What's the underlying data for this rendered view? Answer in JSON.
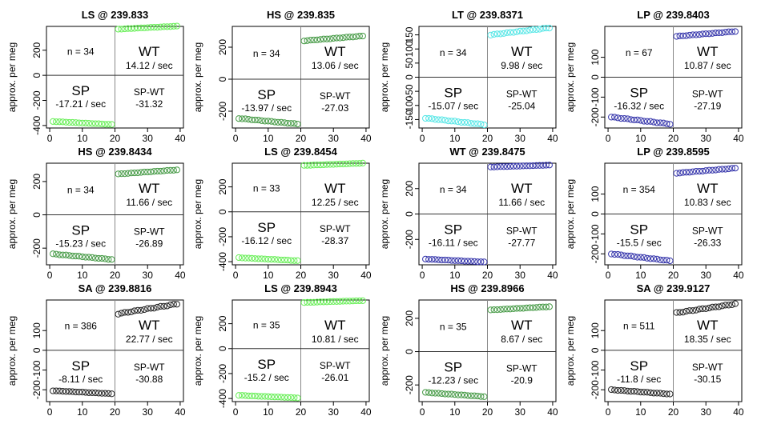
{
  "chart_data": [
    {
      "type": "scatter",
      "title": "LS @ 239.833",
      "ylabel": "approx. per meg",
      "color": "#66ee55",
      "ylim": [
        -420,
        390
      ],
      "yticks": [
        -400,
        -200,
        0,
        200
      ],
      "xlim": [
        -1,
        41
      ],
      "xticks": [
        0,
        10,
        20,
        30,
        40
      ],
      "xticklabels": [
        "0",
        "10",
        "20",
        "30",
        "40"
      ],
      "n": "n = 34",
      "wt_label": "WT",
      "wt_rate": "14.12 / sec",
      "sp_label": "SP",
      "sp_rate": "-17.21 / sec",
      "spwt_label": "SP-WT",
      "spwt_value": "-31.32",
      "sp_y_start": -368,
      "sp_y_end": -392,
      "wt_y_start": 368,
      "wt_y_end": 392
    },
    {
      "type": "scatter",
      "title": "HS @ 239.835",
      "ylabel": "approx. per meg",
      "color": "#449944",
      "ylim": [
        -305,
        330
      ],
      "yticks": [
        -200,
        0,
        200
      ],
      "xlim": [
        -1,
        41
      ],
      "xticks": [
        0,
        10,
        20,
        30,
        40
      ],
      "xticklabels": [
        "0",
        "10",
        "20",
        "30",
        "40"
      ],
      "n": "n = 34",
      "wt_label": "WT",
      "wt_rate": "13.06 / sec",
      "sp_label": "SP",
      "sp_rate": "-13.97 / sec",
      "spwt_label": "SP-WT",
      "spwt_value": "-27.03",
      "sp_y_start": -245,
      "sp_y_end": -280,
      "wt_y_start": 240,
      "wt_y_end": 270
    },
    {
      "type": "scatter",
      "title": "LT @ 239.8371",
      "ylabel": "approx. per meg",
      "color": "#55e6e6",
      "ylim": [
        -180,
        180
      ],
      "yticks": [
        -150,
        -100,
        -50,
        0,
        50,
        100,
        150
      ],
      "xlim": [
        -1,
        41
      ],
      "xticks": [
        0,
        10,
        20,
        30,
        40
      ],
      "xticklabels": [
        "0",
        "10",
        "20",
        "30",
        "40"
      ],
      "n": "n = 34",
      "wt_label": "WT",
      "wt_rate": "9.98 / sec",
      "sp_label": "SP",
      "sp_rate": "-15.07 / sec",
      "spwt_label": "SP-WT",
      "spwt_value": "-25.04",
      "sp_y_start": -145,
      "sp_y_end": -168,
      "wt_y_start": 150,
      "wt_y_end": 175
    },
    {
      "type": "scatter",
      "title": "LP @ 239.8403",
      "ylabel": "approx. per meg",
      "color": "#3333aa",
      "ylim": [
        -255,
        255
      ],
      "yticks": [
        -200,
        -100,
        0,
        100
      ],
      "xlim": [
        -1,
        41
      ],
      "xticks": [
        0,
        10,
        20,
        30,
        40
      ],
      "xticklabels": [
        "0",
        "10",
        "20",
        "30",
        "40"
      ],
      "n": "n = 67",
      "wt_label": "WT",
      "wt_rate": "10.87 / sec",
      "sp_label": "SP",
      "sp_rate": "-16.32 / sec",
      "spwt_label": "SP-WT",
      "spwt_value": "-27.19",
      "sp_y_start": -200,
      "sp_y_end": -235,
      "wt_y_start": 205,
      "wt_y_end": 230
    },
    {
      "type": "scatter",
      "title": "HS @ 239.8434",
      "ylabel": "approx. per meg",
      "color": "#449944",
      "ylim": [
        -300,
        310
      ],
      "yticks": [
        -200,
        0,
        200
      ],
      "xlim": [
        -1,
        41
      ],
      "xticks": [
        0,
        10,
        20,
        30,
        40
      ],
      "xticklabels": [
        "0",
        "10",
        "20",
        "30",
        "40"
      ],
      "n": "n = 34",
      "wt_label": "WT",
      "wt_rate": "11.66 / sec",
      "sp_label": "SP",
      "sp_rate": "-15.23 / sec",
      "spwt_label": "SP-WT",
      "spwt_value": "-26.89",
      "sp_y_start": -235,
      "sp_y_end": -268,
      "wt_y_start": 245,
      "wt_y_end": 270
    },
    {
      "type": "scatter",
      "title": "LS @ 239.8454",
      "ylabel": "approx. per meg",
      "color": "#66ee55",
      "ylim": [
        -425,
        390
      ],
      "yticks": [
        -400,
        -200,
        0,
        200
      ],
      "xlim": [
        -1,
        41
      ],
      "xticks": [
        0,
        10,
        20,
        30,
        40
      ],
      "xticklabels": [
        "0",
        "10",
        "20",
        "30",
        "40"
      ],
      "n": "n = 33",
      "wt_label": "WT",
      "wt_rate": "12.25 / sec",
      "sp_label": "SP",
      "sp_rate": "-16.12 / sec",
      "spwt_label": "SP-WT",
      "spwt_value": "-28.37",
      "sp_y_start": -368,
      "sp_y_end": -392,
      "wt_y_start": 372,
      "wt_y_end": 390
    },
    {
      "type": "scatter",
      "title": "WT @ 239.8475",
      "ylabel": "approx. per meg",
      "color": "#3333aa",
      "ylim": [
        -400,
        400
      ],
      "yticks": [
        -200,
        0,
        200
      ],
      "xlim": [
        -1,
        41
      ],
      "xticks": [
        0,
        10,
        20,
        30,
        40
      ],
      "xticklabels": [
        "0",
        "10",
        "20",
        "30",
        "40"
      ],
      "n": "n = 34",
      "wt_label": "WT",
      "wt_rate": "11.66 / sec",
      "sp_label": "SP",
      "sp_rate": "-16.11 / sec",
      "spwt_label": "SP-WT",
      "spwt_value": "-27.77",
      "sp_y_start": -355,
      "sp_y_end": -378,
      "wt_y_start": 370,
      "wt_y_end": 385
    },
    {
      "type": "scatter",
      "title": "LP @ 239.8595",
      "ylabel": "approx. per meg",
      "color": "#3333aa",
      "ylim": [
        -255,
        255
      ],
      "yticks": [
        -200,
        -100,
        0,
        100
      ],
      "xlim": [
        -1,
        41
      ],
      "xticks": [
        0,
        10,
        20,
        30,
        40
      ],
      "xticklabels": [
        "0",
        "10",
        "20",
        "30",
        "40"
      ],
      "n": "n = 354",
      "wt_label": "WT",
      "wt_rate": "10.83 / sec",
      "sp_label": "SP",
      "sp_rate": "-15.5 / sec",
      "spwt_label": "SP-WT",
      "spwt_value": "-26.33",
      "sp_y_start": -200,
      "sp_y_end": -235,
      "wt_y_start": 205,
      "wt_y_end": 230
    },
    {
      "type": "scatter",
      "title": "SA @ 239.8816",
      "ylabel": "approx. per meg",
      "color": "#222222",
      "ylim": [
        -260,
        255
      ],
      "yticks": [
        -200,
        -100,
        0,
        100
      ],
      "xlim": [
        -1,
        41
      ],
      "xticks": [
        0,
        10,
        20,
        30,
        40
      ],
      "xticklabels": [
        "0",
        "10",
        "20",
        "30",
        "40"
      ],
      "n": "n = 386",
      "wt_label": "WT",
      "wt_rate": "22.77 / sec",
      "sp_label": "SP",
      "sp_rate": "-8.11 / sec",
      "spwt_label": "SP-WT",
      "spwt_value": "-30.88",
      "sp_y_start": -205,
      "sp_y_end": -220,
      "wt_y_start": 185,
      "wt_y_end": 235
    },
    {
      "type": "scatter",
      "title": "LS @ 239.8943",
      "ylabel": "approx. per meg",
      "color": "#66ee55",
      "ylim": [
        -425,
        390
      ],
      "yticks": [
        -400,
        -200,
        0,
        200
      ],
      "xlim": [
        -1,
        41
      ],
      "xticks": [
        0,
        10,
        20,
        30,
        40
      ],
      "xticklabels": [
        "0",
        "10",
        "20",
        "30",
        "40"
      ],
      "n": "n = 35",
      "wt_label": "WT",
      "wt_rate": "10.81 / sec",
      "sp_label": "SP",
      "sp_rate": "-15.2 / sec",
      "spwt_label": "SP-WT",
      "spwt_value": "-26.01",
      "sp_y_start": -375,
      "sp_y_end": -395,
      "wt_y_start": 370,
      "wt_y_end": 385
    },
    {
      "type": "scatter",
      "title": "HS @ 239.8966",
      "ylabel": "approx. per meg",
      "color": "#449944",
      "ylim": [
        -300,
        310
      ],
      "yticks": [
        -200,
        0,
        200
      ],
      "xlim": [
        -1,
        41
      ],
      "xticks": [
        0,
        10,
        20,
        30,
        40
      ],
      "xticklabels": [
        "0",
        "10",
        "20",
        "30",
        "40"
      ],
      "n": "n = 35",
      "wt_label": "WT",
      "wt_rate": "8.67 / sec",
      "sp_label": "SP",
      "sp_rate": "-12.23 / sec",
      "spwt_label": "SP-WT",
      "spwt_value": "-20.9",
      "sp_y_start": -245,
      "sp_y_end": -270,
      "wt_y_start": 250,
      "wt_y_end": 270
    },
    {
      "type": "scatter",
      "title": "SA @ 239.9127",
      "ylabel": "approx. per meg",
      "color": "#222222",
      "ylim": [
        -260,
        255
      ],
      "yticks": [
        -200,
        -100,
        0,
        100
      ],
      "xlim": [
        -1,
        41
      ],
      "xticks": [
        0,
        10,
        20,
        30,
        40
      ],
      "xticklabels": [
        "0",
        "10",
        "20",
        "30",
        "40"
      ],
      "n": "n = 511",
      "wt_label": "WT",
      "wt_rate": "18.35 / sec",
      "sp_label": "SP",
      "sp_rate": "-11.8 / sec",
      "spwt_label": "SP-WT",
      "spwt_value": "-30.15",
      "sp_y_start": -200,
      "sp_y_end": -222,
      "wt_y_start": 190,
      "wt_y_end": 235
    }
  ]
}
